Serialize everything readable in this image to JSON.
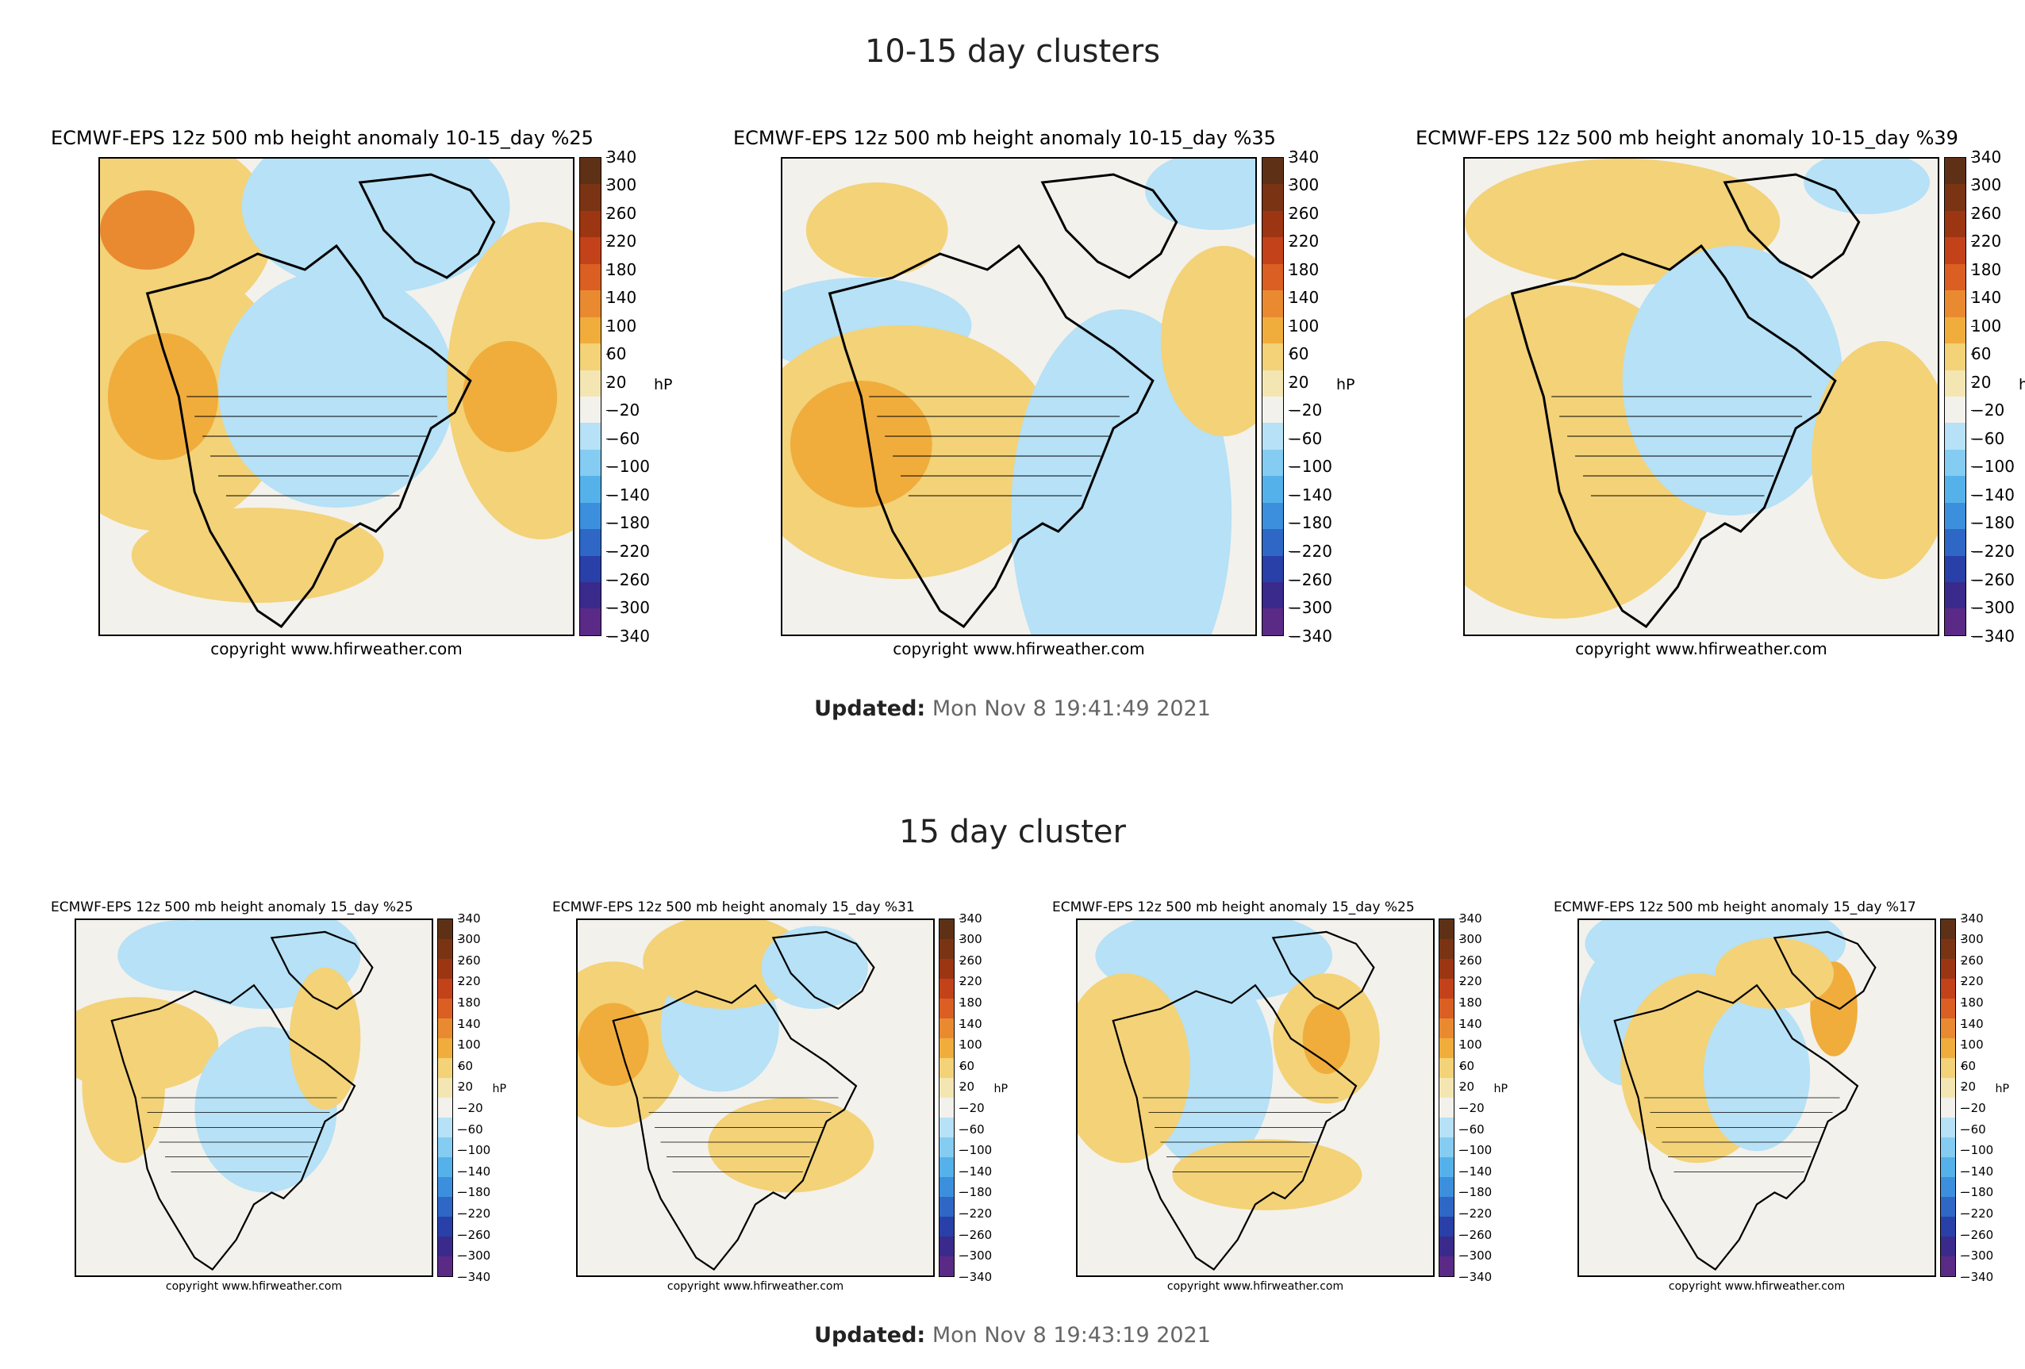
{
  "section1": {
    "title": "10-15 day clusters",
    "updated_label": "Updated:",
    "updated_value": "Mon Nov 8 19:41:49 2021"
  },
  "section2": {
    "title": "15 day cluster",
    "updated_label": "Updated:",
    "updated_value": "Mon Nov 8 19:43:19 2021"
  },
  "colorbar": {
    "unit": "hP",
    "ticks": [
      "340",
      "300",
      "260",
      "220",
      "180",
      "140",
      "100",
      "60",
      "20",
      "−20",
      "−60",
      "−100",
      "−140",
      "−180",
      "−220",
      "−260",
      "−300",
      "−340"
    ],
    "colors": [
      "#5e3116",
      "#7a3414",
      "#9c3512",
      "#c4421a",
      "#db5f22",
      "#e98a31",
      "#f0ad3c",
      "#f3d278",
      "#f4e6b2",
      "#f3f1ec",
      "#b6e1f6",
      "#84ccf1",
      "#55b1ea",
      "#3c8fdd",
      "#2f67c7",
      "#2940a8",
      "#3a2a8c",
      "#5a2a86"
    ]
  },
  "copyright": "copyright www.hfirweather.com",
  "panels_row1": [
    {
      "title": "ECMWF-EPS 12z 500 mb height anomaly 10-15_day %25"
    },
    {
      "title": "ECMWF-EPS 12z 500 mb height anomaly 10-15_day %35"
    },
    {
      "title": "ECMWF-EPS 12z 500 mb height anomaly 10-15_day %39"
    }
  ],
  "panels_row2": [
    {
      "title": "ECMWF-EPS 12z 500 mb height anomaly 15_day %25"
    },
    {
      "title": "ECMWF-EPS 12z 500 mb height anomaly 15_day %31"
    },
    {
      "title": "ECMWF-EPS 12z 500 mb height anomaly 15_day %25"
    },
    {
      "title": "ECMWF-EPS 12z 500 mb height anomaly 15_day %17"
    }
  ]
}
